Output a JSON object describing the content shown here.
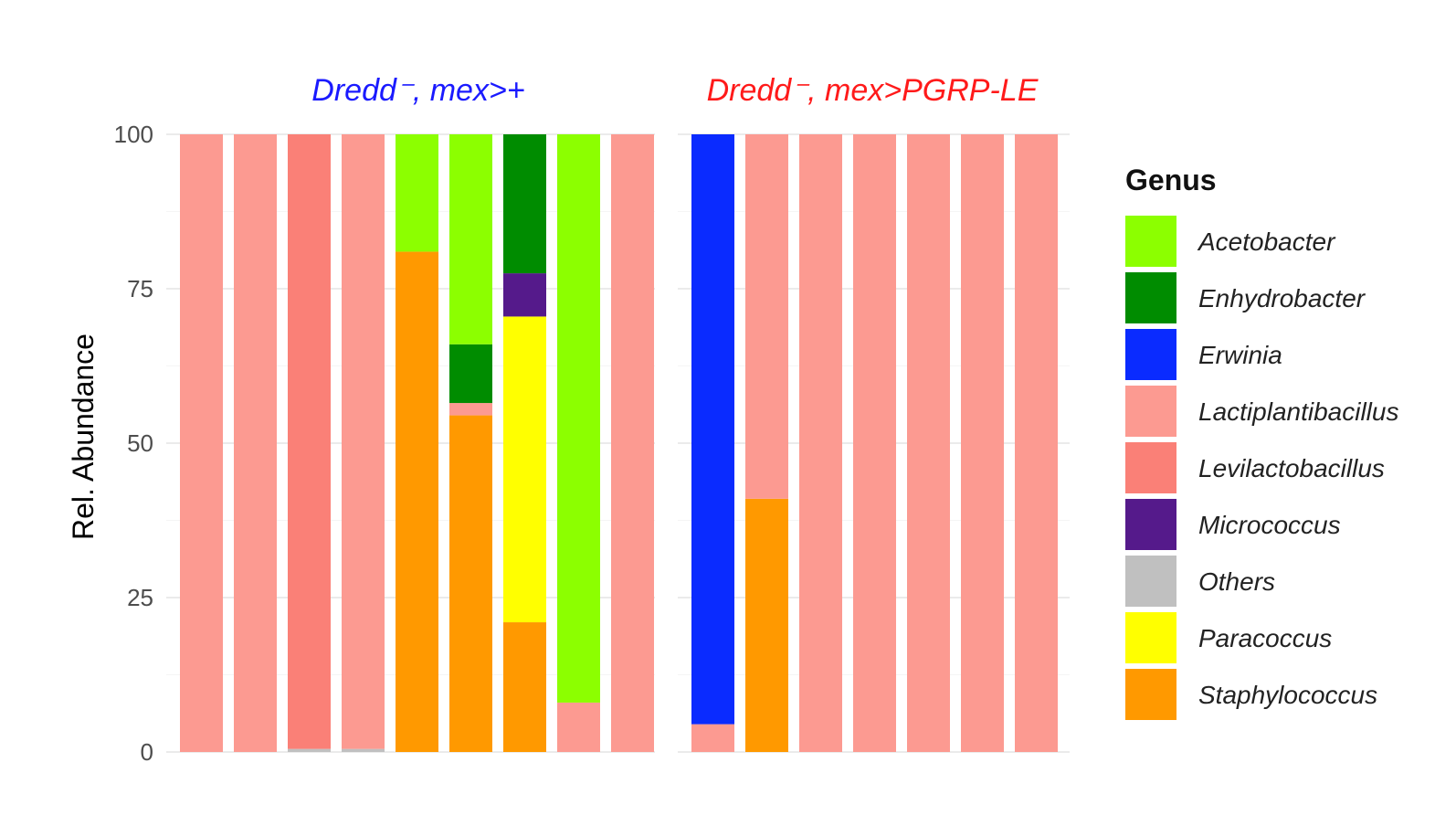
{
  "chart_data": {
    "type": "bar",
    "stacked": true,
    "ylabel": "Rel. Abundance",
    "ylim": [
      0,
      100
    ],
    "yticks": [
      "0",
      "25",
      "50",
      "75",
      "100"
    ],
    "grid": true,
    "legend": {
      "title": "Genus",
      "placement": "right",
      "entries": [
        {
          "name": "Acetobacter",
          "color": "#8cff00"
        },
        {
          "name": "Enhydrobacter",
          "color": "#008c00"
        },
        {
          "name": "Erwinia",
          "color": "#0a2bff"
        },
        {
          "name": "Lactiplantibacillus",
          "color": "#fc9a91"
        },
        {
          "name": "Levilactobacillus",
          "color": "#fa8077"
        },
        {
          "name": "Micrococcus",
          "color": "#551a8b"
        },
        {
          "name": "Others",
          "color": "#c0c0c0"
        },
        {
          "name": "Paracoccus",
          "color": "#ffff00"
        },
        {
          "name": "Staphylococcus",
          "color": "#ff9900"
        }
      ]
    },
    "panels": [
      {
        "title": "Dredd⁻, mex>+",
        "title_color": "#1a1aff",
        "samples": [
          {
            "segments": [
              {
                "genus": "Lactiplantibacillus",
                "value": 100
              }
            ]
          },
          {
            "segments": [
              {
                "genus": "Lactiplantibacillus",
                "value": 100
              }
            ]
          },
          {
            "segments": [
              {
                "genus": "Others",
                "value": 0.5
              },
              {
                "genus": "Levilactobacillus",
                "value": 99.5
              }
            ]
          },
          {
            "segments": [
              {
                "genus": "Others",
                "value": 0.5
              },
              {
                "genus": "Lactiplantibacillus",
                "value": 99.5
              }
            ]
          },
          {
            "segments": [
              {
                "genus": "Staphylococcus",
                "value": 81
              },
              {
                "genus": "Acetobacter",
                "value": 19
              }
            ]
          },
          {
            "segments": [
              {
                "genus": "Staphylococcus",
                "value": 54.5
              },
              {
                "genus": "Lactiplantibacillus",
                "value": 2
              },
              {
                "genus": "Enhydrobacter",
                "value": 9.5
              },
              {
                "genus": "Acetobacter",
                "value": 34
              }
            ]
          },
          {
            "segments": [
              {
                "genus": "Staphylococcus",
                "value": 21
              },
              {
                "genus": "Paracoccus",
                "value": 49.5
              },
              {
                "genus": "Micrococcus",
                "value": 7
              },
              {
                "genus": "Enhydrobacter",
                "value": 22.5
              }
            ]
          },
          {
            "segments": [
              {
                "genus": "Lactiplantibacillus",
                "value": 8
              },
              {
                "genus": "Acetobacter",
                "value": 92
              }
            ]
          },
          {
            "segments": [
              {
                "genus": "Lactiplantibacillus",
                "value": 100
              }
            ]
          }
        ]
      },
      {
        "title": "Dredd⁻, mex>PGRP-LE",
        "title_color": "#ff1a1a",
        "samples": [
          {
            "segments": [
              {
                "genus": "Lactiplantibacillus",
                "value": 4.5
              },
              {
                "genus": "Erwinia",
                "value": 95.5
              }
            ]
          },
          {
            "segments": [
              {
                "genus": "Staphylococcus",
                "value": 41
              },
              {
                "genus": "Lactiplantibacillus",
                "value": 59
              }
            ]
          },
          {
            "segments": [
              {
                "genus": "Lactiplantibacillus",
                "value": 100
              }
            ]
          },
          {
            "segments": [
              {
                "genus": "Lactiplantibacillus",
                "value": 100
              }
            ]
          },
          {
            "segments": [
              {
                "genus": "Lactiplantibacillus",
                "value": 100
              }
            ]
          },
          {
            "segments": [
              {
                "genus": "Lactiplantibacillus",
                "value": 100
              }
            ]
          },
          {
            "segments": [
              {
                "genus": "Lactiplantibacillus",
                "value": 100
              }
            ]
          }
        ]
      }
    ]
  }
}
